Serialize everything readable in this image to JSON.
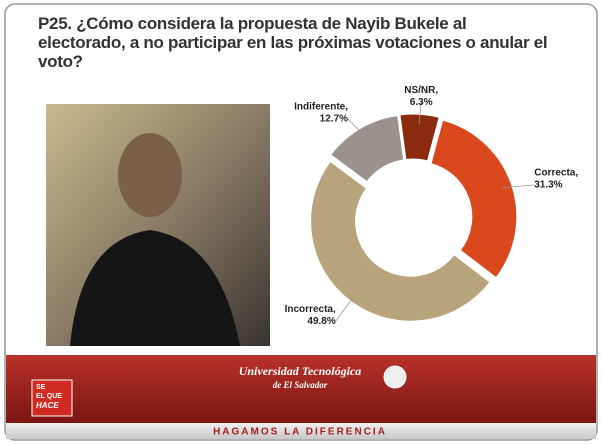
{
  "chart_data": {
    "type": "pie",
    "title": "P25. ¿Cómo considera la propuesta de Nayib Bukele al electorado, a no participar en las próximas votaciones o anular el voto?",
    "categories": [
      "Correcta,",
      "Incorrecta,",
      "Indiferente,",
      "NS/NR,"
    ],
    "values": [
      31.3,
      49.8,
      12.7,
      6.3
    ],
    "value_labels": [
      "31.3%",
      "49.8%",
      "12.7%",
      "6.3%"
    ],
    "colors": [
      "#d9481c",
      "#b7a37c",
      "#9c928d",
      "#8a2a0f"
    ],
    "donut": true
  },
  "footer": {
    "university": "Universidad Tecnológica",
    "university_sub": "de El Salvador",
    "slogan": "HAGAMOS LA DIFERENCIA",
    "badge": [
      "SE",
      "EL QUE",
      "HACE"
    ]
  }
}
